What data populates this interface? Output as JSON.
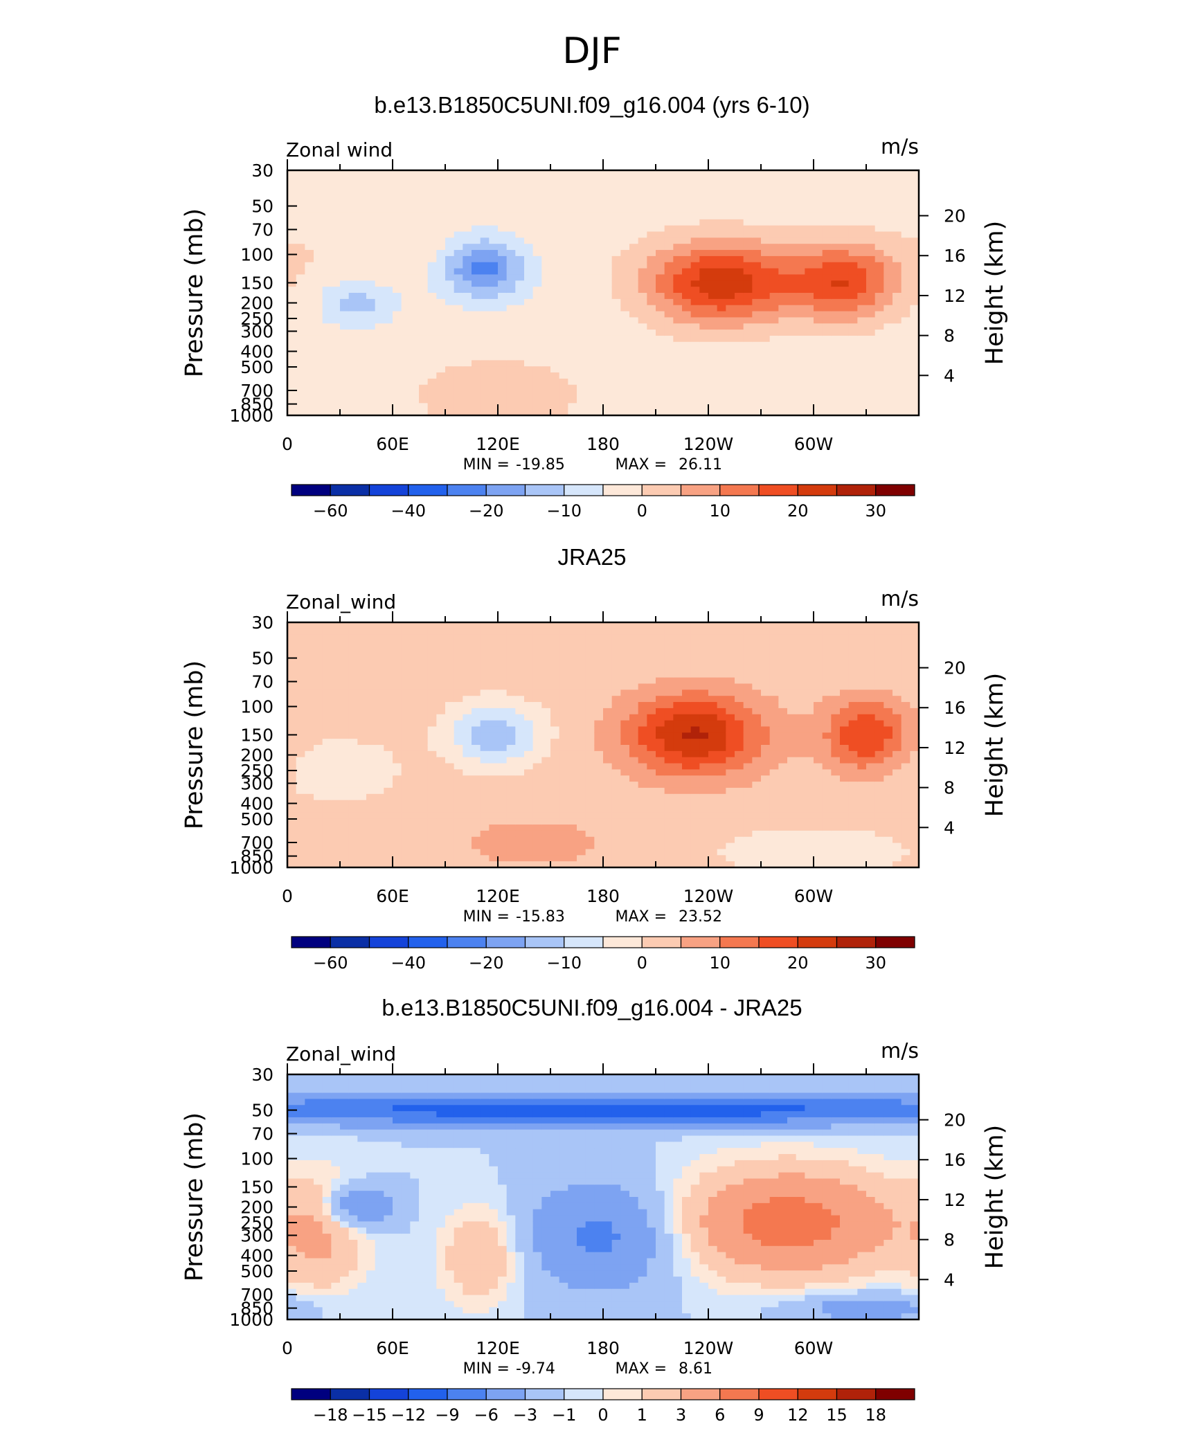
{
  "page_title": "DJF",
  "palette": [
    "#00007f",
    "#0a2fa6",
    "#1443d9",
    "#2261ec",
    "#4c82f0",
    "#7da3f2",
    "#a9c5f7",
    "#d6e6fb",
    "#fde8d9",
    "#fccbb2",
    "#f8a283",
    "#f47850",
    "#ef4e23",
    "#d43b0d",
    "#b02209",
    "#7f0000"
  ],
  "chart_data": [
    {
      "type": "heatmap",
      "title": "b.e13.B1850C5UNI.f09_g16.004 (yrs 6-10)",
      "left_label": "Zonal wind",
      "right_label": "m/s",
      "ylabel": "Pressure (mb)",
      "ylabel_right": "Height (km)",
      "x_ticks": [
        "0",
        "60E",
        "120E",
        "180",
        "120W",
        "60W"
      ],
      "y_ticks": [
        "30",
        "50",
        "70",
        "100",
        "150",
        "200",
        "250",
        "300",
        "400",
        "500",
        "700",
        "850",
        "1000"
      ],
      "y_ticks_right": [
        "20",
        "16",
        "12",
        "8",
        "4"
      ],
      "stats": {
        "min_label": "MIN =",
        "min": "-19.85",
        "max_label": "MAX =",
        "max": "26.11"
      },
      "colorbar": {
        "levels": [
          -70,
          -60,
          -50,
          -40,
          -30,
          -20,
          -15,
          -10,
          -5,
          0,
          5,
          10,
          15,
          20,
          25,
          30,
          35
        ],
        "labels": [
          "−60",
          "−40",
          "−20",
          "−10",
          "0",
          "10",
          "20",
          "30"
        ]
      },
      "features": [
        {
          "lon": 247,
          "p": 150,
          "amp": 26.1,
          "wl": 30,
          "wp": 0.42
        },
        {
          "lon": 318,
          "p": 150,
          "amp": 21,
          "wl": 22,
          "wp": 0.38
        },
        {
          "lon": 112,
          "p": 120,
          "amp": -19.8,
          "wl": 17,
          "wp": 0.3
        },
        {
          "lon": 40,
          "p": 200,
          "amp": -9,
          "wl": 14,
          "wp": 0.22
        },
        {
          "lon": 120,
          "p": 750,
          "amp": 8,
          "wl": 32,
          "wp": 0.35
        },
        {
          "lon": 50,
          "p": 95,
          "amp": 3,
          "wl": 70,
          "wp": 0.3
        }
      ],
      "base": -3
    },
    {
      "type": "heatmap",
      "title": "JRA25",
      "left_label": "Zonal_wind",
      "right_label": "m/s",
      "ylabel": "Pressure (mb)",
      "ylabel_right": "Height (km)",
      "x_ticks": [
        "0",
        "60E",
        "120E",
        "180",
        "120W",
        "60W"
      ],
      "y_ticks": [
        "30",
        "50",
        "70",
        "100",
        "150",
        "200",
        "250",
        "300",
        "400",
        "500",
        "700",
        "850",
        "1000"
      ],
      "y_ticks_right": [
        "20",
        "16",
        "12",
        "8",
        "4"
      ],
      "stats": {
        "min_label": "MIN =",
        "min": "-15.83",
        "max_label": "MAX =",
        "max": "23.52"
      },
      "colorbar": {
        "levels": [
          -70,
          -60,
          -50,
          -40,
          -30,
          -20,
          -15,
          -10,
          -5,
          0,
          5,
          10,
          15,
          20,
          25,
          30,
          35
        ],
        "labels": [
          "−60",
          "−40",
          "−20",
          "−10",
          "0",
          "10",
          "20",
          "30"
        ]
      },
      "features": [
        {
          "lon": 232,
          "p": 150,
          "amp": 23.5,
          "wl": 28,
          "wp": 0.42
        },
        {
          "lon": 330,
          "p": 150,
          "amp": 18,
          "wl": 17,
          "wp": 0.36
        },
        {
          "lon": 118,
          "p": 150,
          "amp": -15.8,
          "wl": 18,
          "wp": 0.3
        },
        {
          "lon": 30,
          "p": 250,
          "amp": -6,
          "wl": 22,
          "wp": 0.3
        },
        {
          "lon": 300,
          "p": 800,
          "amp": -5,
          "wl": 40,
          "wp": 0.25
        },
        {
          "lon": 140,
          "p": 700,
          "amp": 6,
          "wl": 30,
          "wp": 0.25
        }
      ],
      "base": 2
    },
    {
      "type": "heatmap",
      "title": "b.e13.B1850C5UNI.f09_g16.004 - JRA25",
      "left_label": "Zonal_wind",
      "right_label": "m/s",
      "ylabel": "Pressure (mb)",
      "ylabel_right": "Height (km)",
      "x_ticks": [
        "0",
        "60E",
        "120E",
        "180",
        "120W",
        "60W"
      ],
      "y_ticks": [
        "30",
        "50",
        "70",
        "100",
        "150",
        "200",
        "250",
        "300",
        "400",
        "500",
        "700",
        "850",
        "1000"
      ],
      "y_ticks_right": [
        "20",
        "16",
        "12",
        "8",
        "4"
      ],
      "stats": {
        "min_label": "MIN =",
        "min": "-9.74",
        "max_label": "MAX =",
        "max": "8.61"
      },
      "colorbar": {
        "levels": [
          -21,
          -18,
          -15,
          -12,
          -9,
          -6,
          -3,
          -1,
          0,
          1,
          3,
          6,
          9,
          12,
          15,
          18,
          21
        ],
        "labels": [
          "−18",
          "−15",
          "−12",
          "−9",
          "−6",
          "−3",
          "−1",
          "0",
          "1",
          "3",
          "6",
          "9",
          "12",
          "15",
          "18"
        ]
      },
      "features": [
        {
          "lon": 180,
          "p": 50,
          "amp": -9.7,
          "wl": 200,
          "wp": 0.15
        },
        {
          "lon": 285,
          "p": 250,
          "amp": 8.6,
          "wl": 45,
          "wp": 0.55
        },
        {
          "lon": 180,
          "p": 300,
          "amp": -6,
          "wl": 30,
          "wp": 0.55
        },
        {
          "lon": 40,
          "p": 200,
          "amp": -6,
          "wl": 14,
          "wp": 0.22
        },
        {
          "lon": 20,
          "p": 300,
          "amp": 4,
          "wl": 18,
          "wp": 0.6
        },
        {
          "lon": 110,
          "p": 400,
          "amp": 4,
          "wl": 16,
          "wp": 0.5
        },
        {
          "lon": 330,
          "p": 850,
          "amp": -4,
          "wl": 30,
          "wp": 0.15
        }
      ],
      "base": -1
    }
  ]
}
